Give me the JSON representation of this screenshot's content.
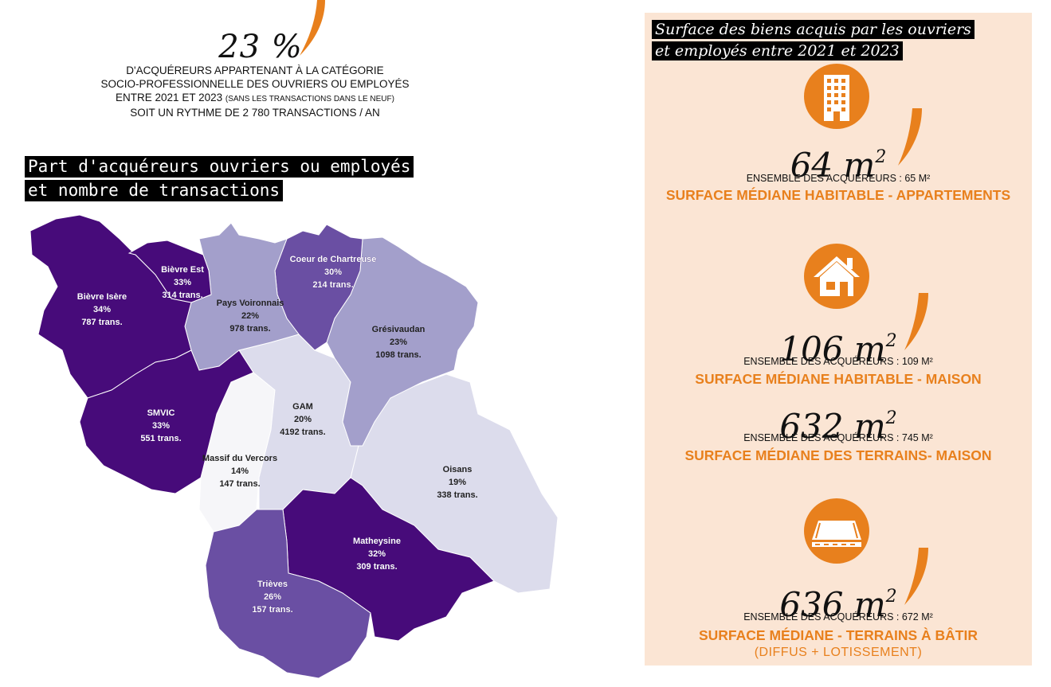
{
  "headline": {
    "percent": "23 %",
    "line1": "D'ACQUÉREURS APPARTENANT À LA CATÉGORIE",
    "line2": "SOCIO-PROFESSIONNELLE DES OUVRIERS OU EMPLOYÉS",
    "line3_main": "ENTRE 2021 ET 2023 ",
    "line3_small": "(SANS LES TRANSACTIONS DANS LE NEUF)",
    "line4": "SOIT UN RYTHME DE 2 780 TRANSACTIONS / AN"
  },
  "map_section": {
    "title_line1": "Part d'acquéreurs ouvriers ou employés",
    "title_line2": "et nombre de transactions"
  },
  "colors": {
    "orange": "#e8801d",
    "panel_bg": "#fbe5d4",
    "shade_darkest": "#470b7a",
    "shade_dark": "#6a4fa3",
    "shade_mid": "#a39fcb",
    "shade_light": "#dcdcec",
    "shade_lightest": "#f6f6f9"
  },
  "regions": [
    {
      "name": "Bièvre Isère",
      "pct": "34%",
      "trans": "787 trans.",
      "shade": "darkest"
    },
    {
      "name": "Bièvre Est",
      "pct": "33%",
      "trans": "314 trans.",
      "shade": "darkest"
    },
    {
      "name": "Pays Voironnais",
      "pct": "22%",
      "trans": "978 trans.",
      "shade": "mid"
    },
    {
      "name": "Coeur de Chartreuse",
      "pct": "30%",
      "trans": "214 trans.",
      "shade": "dark"
    },
    {
      "name": "Grésivaudan",
      "pct": "23%",
      "trans": "1098 trans.",
      "shade": "mid"
    },
    {
      "name": "SMVIC",
      "pct": "33%",
      "trans": "551 trans.",
      "shade": "darkest"
    },
    {
      "name": "GAM",
      "pct": "20%",
      "trans": "4192 trans.",
      "shade": "light"
    },
    {
      "name": "Massif du Vercors",
      "pct": "14%",
      "trans": "147 trans.",
      "shade": "lightest"
    },
    {
      "name": "Oisans",
      "pct": "19%",
      "trans": "338 trans.",
      "shade": "light"
    },
    {
      "name": "Matheysine",
      "pct": "32%",
      "trans": "309 trans.",
      "shade": "darkest"
    },
    {
      "name": "Trièves",
      "pct": "26%",
      "trans": "157 trans.",
      "shade": "dark"
    }
  ],
  "right_panel": {
    "title_line1": "Surface des biens acquis par les ouvriers",
    "title_line2": "et employés entre 2021 et 2023",
    "items": [
      {
        "icon": "building-icon",
        "value": "64 m",
        "sup": "2",
        "ensemble": "ENSEMBLE DES ACQUÉREURS : 65 M²",
        "label": "SURFACE MÉDIANE HABITABLE - APPARTEMENTS"
      },
      {
        "icon": "house-icon",
        "value": "106 m",
        "sup": "2",
        "ensemble": "ENSEMBLE DES ACQUÉREURS : 109 M²",
        "label": "SURFACE MÉDIANE HABITABLE - MAISON"
      },
      {
        "icon": "",
        "value": "632 m",
        "sup": "2",
        "ensemble": "ENSEMBLE DES ACQUÉREURS : 745 M²",
        "label": "SURFACE MÉDIANE DES TERRAINS- MAISON"
      },
      {
        "icon": "land-plot-icon",
        "value": "636 m",
        "sup": "2",
        "ensemble": "ENSEMBLE DES ACQUÉREURS : 672 M²",
        "label": "SURFACE MÉDIANE - TERRAINS À BÂTIR",
        "sublabel": "(DIFFUS + LOTISSEMENT)"
      }
    ]
  }
}
